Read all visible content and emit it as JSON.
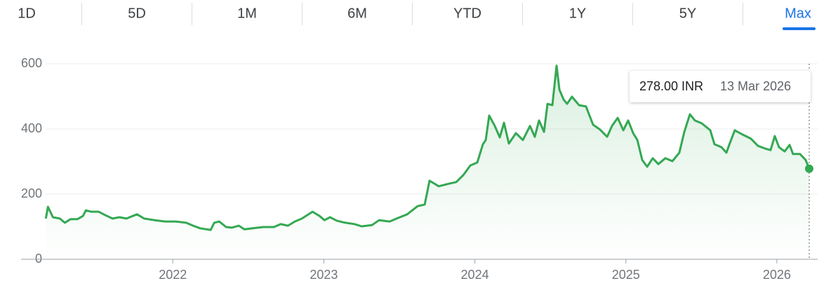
{
  "tabs": [
    "1D",
    "5D",
    "1M",
    "6M",
    "YTD",
    "1Y",
    "5Y",
    "Max"
  ],
  "active_tab": 7,
  "tooltip": {
    "price": "278.00 INR",
    "date": "13 Mar 2026"
  },
  "chart_data": {
    "type": "line",
    "x": [
      2021.159,
      2021.173,
      2021.206,
      2021.252,
      2021.285,
      2021.322,
      2021.368,
      2021.405,
      2021.424,
      2021.461,
      2021.508,
      2021.554,
      2021.6,
      2021.647,
      2021.693,
      2021.763,
      2021.81,
      2021.879,
      2021.949,
      2022.019,
      2022.088,
      2022.135,
      2022.181,
      2022.251,
      2022.274,
      2022.307,
      2022.353,
      2022.39,
      2022.437,
      2022.474,
      2022.53,
      2022.599,
      2022.669,
      2022.715,
      2022.762,
      2022.808,
      2022.855,
      2022.925,
      2022.971,
      2023.004,
      2023.041,
      2023.087,
      2023.143,
      2023.203,
      2023.25,
      2023.319,
      2023.366,
      2023.436,
      2023.482,
      2023.552,
      2023.621,
      2023.668,
      2023.7,
      2023.761,
      2023.83,
      2023.877,
      2023.923,
      2023.97,
      2024.016,
      2024.053,
      2024.072,
      2024.095,
      2024.132,
      2024.165,
      2024.193,
      2024.225,
      2024.272,
      2024.318,
      2024.365,
      2024.397,
      2024.425,
      2024.458,
      2024.481,
      2024.513,
      2024.541,
      2024.56,
      2024.588,
      2024.611,
      2024.643,
      2024.69,
      2024.736,
      2024.783,
      2024.829,
      2024.876,
      2024.908,
      2024.946,
      2024.983,
      2025.015,
      2025.048,
      2025.076,
      2025.108,
      2025.141,
      2025.178,
      2025.215,
      2025.261,
      2025.308,
      2025.354,
      2025.387,
      2025.424,
      2025.457,
      2025.503,
      2025.559,
      2025.587,
      2025.633,
      2025.666,
      2025.689,
      2025.721,
      2025.772,
      2025.828,
      2025.875,
      2025.921,
      2025.958,
      2025.986,
      2026.014,
      2026.051,
      2026.084,
      2026.107,
      2026.153,
      2026.19,
      2026.214
    ],
    "series": [
      {
        "color": "#34a853",
        "values": [
          125,
          161,
          129,
          125,
          112,
          123,
          123,
          133,
          150,
          146,
          146,
          135,
          125,
          129,
          125,
          138,
          125,
          120,
          116,
          116,
          112,
          103,
          95,
          90,
          112,
          116,
          99,
          97,
          103,
          92,
          95,
          99,
          99,
          108,
          103,
          116,
          125,
          146,
          133,
          120,
          129,
          118,
          112,
          108,
          101,
          105,
          120,
          116,
          125,
          138,
          163,
          168,
          241,
          224,
          232,
          237,
          258,
          288,
          297,
          353,
          366,
          441,
          409,
          374,
          419,
          355,
          387,
          366,
          409,
          376,
          426,
          391,
          477,
          473,
          594,
          520,
          490,
          477,
          499,
          473,
          469,
          413,
          398,
          376,
          409,
          434,
          396,
          426,
          387,
          366,
          305,
          284,
          310,
          292,
          310,
          301,
          327,
          391,
          445,
          426,
          417,
          396,
          353,
          344,
          327,
          357,
          396,
          383,
          370,
          348,
          340,
          335,
          378,
          344,
          331,
          351,
          323,
          323,
          305,
          278
        ]
      }
    ],
    "xlim": [
      2020.995,
      2026.27
    ],
    "xticks": [
      2022,
      2023,
      2024,
      2025,
      2026
    ],
    "ylim": [
      0,
      600
    ],
    "yticks": [
      0,
      200,
      400,
      600
    ],
    "grid": true
  }
}
